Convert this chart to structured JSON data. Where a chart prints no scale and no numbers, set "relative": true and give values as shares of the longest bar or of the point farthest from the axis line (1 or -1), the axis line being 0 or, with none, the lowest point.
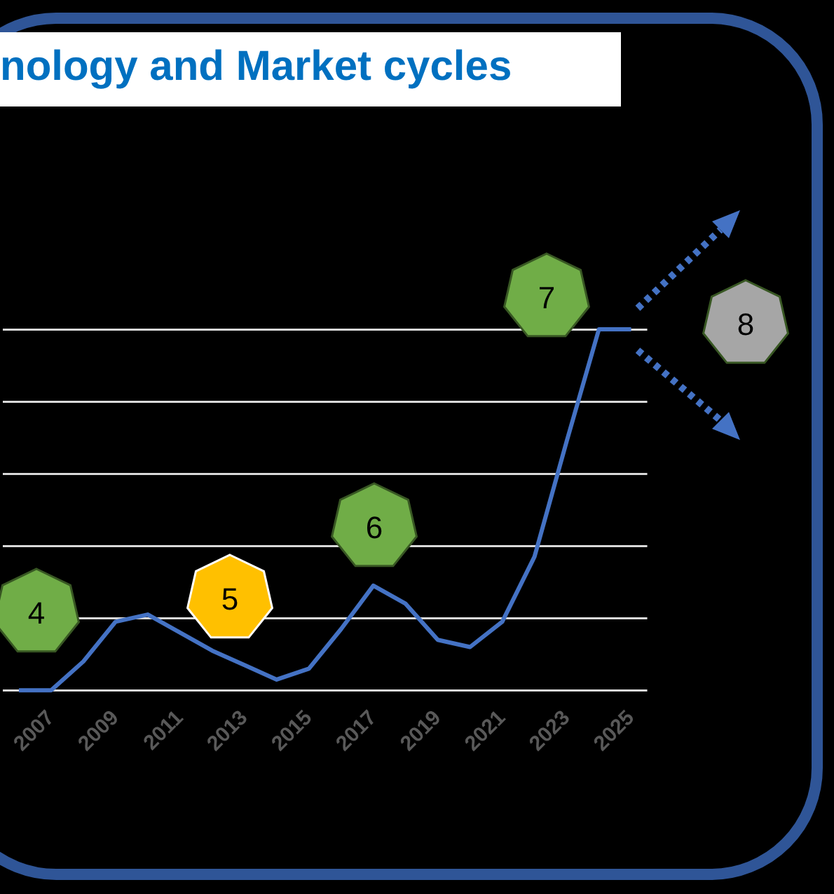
{
  "chart_data": {
    "type": "line",
    "title": "nology and Market cycles",
    "relative": true,
    "grid": "y",
    "marker": "none",
    "categories": [
      null,
      "2007",
      null,
      "2009",
      null,
      "2011",
      null,
      "2013",
      null,
      "2015",
      null,
      "2017",
      null,
      "2019",
      null,
      "2021",
      null,
      "2023",
      null,
      "2025"
    ],
    "series": [
      {
        "color": "#4472c4",
        "values": [
          0,
          0,
          0.08,
          0.19,
          0.21,
          0.16,
          0.11,
          0.07,
          0.03,
          0.06,
          0.17,
          0.29,
          0.24,
          0.14,
          0.12,
          0.19,
          0.37,
          0.69,
          1,
          1
        ]
      }
    ],
    "annotations": [
      "4",
      "5",
      "6",
      "7",
      "8"
    ]
  }
}
